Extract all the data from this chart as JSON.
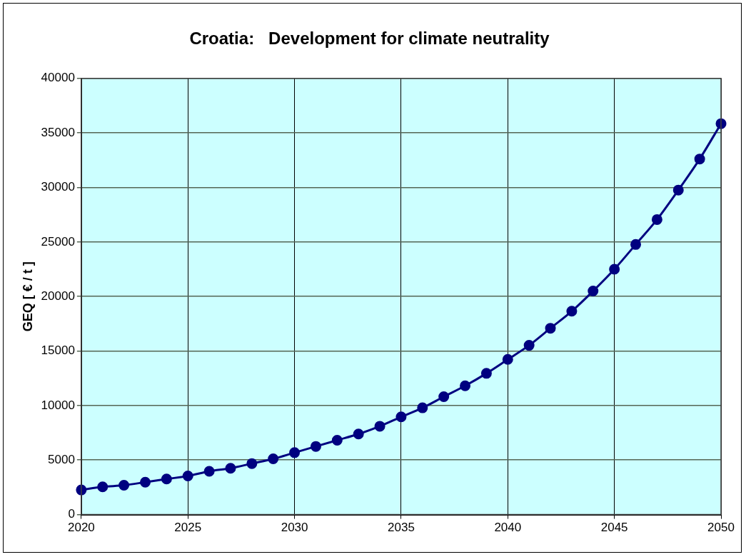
{
  "chart_data": {
    "type": "line",
    "title": "Croatia:   Development for climate neutrality",
    "ylabel": "GEQ [ € / t ]",
    "x": [
      2020,
      2021,
      2022,
      2023,
      2024,
      2025,
      2026,
      2027,
      2028,
      2029,
      2030,
      2031,
      2032,
      2033,
      2034,
      2035,
      2036,
      2037,
      2038,
      2039,
      2040,
      2041,
      2042,
      2043,
      2044,
      2045,
      2046,
      2047,
      2048,
      2049,
      2050
    ],
    "series": [
      {
        "color": "#000080",
        "values": [
          2260,
          2540,
          2690,
          2970,
          3260,
          3540,
          3970,
          4250,
          4680,
          5110,
          5680,
          6250,
          6820,
          7390,
          8100,
          8960,
          9790,
          10810,
          11810,
          12950,
          14230,
          15520,
          17090,
          18650,
          20500,
          22500,
          24770,
          27060,
          29760,
          32610,
          35850
        ]
      }
    ],
    "xlim": [
      2020,
      2050
    ],
    "xticks": [
      2020,
      2025,
      2030,
      2035,
      2040,
      2045,
      2050
    ],
    "ylim": [
      0,
      40000
    ],
    "yticks": [
      0,
      5000,
      10000,
      15000,
      20000,
      25000,
      30000,
      35000,
      40000
    ],
    "grid": true,
    "legend": false,
    "marker": "circle",
    "line_style": "solid"
  }
}
